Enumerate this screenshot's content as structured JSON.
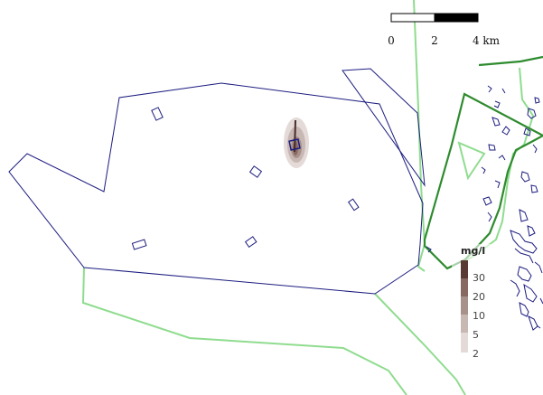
{
  "colors": {
    "navy_outline": "#1c1c80",
    "light_green": "#8fdc8f",
    "dark_green": "#2e8b2e",
    "scalebar_dark": "#000000",
    "scalebar_light": "#ffffff",
    "plume_core": "#4a2a2a"
  },
  "scale_bar": {
    "labels": [
      "0",
      "2",
      "4 km"
    ]
  },
  "legend": {
    "title": "mg/l",
    "levels": [
      {
        "label": "30",
        "color": "#5a3a34"
      },
      {
        "label": "20",
        "color": "#876962"
      },
      {
        "label": "10",
        "color": "#a8918b"
      },
      {
        "label": "5",
        "color": "#c8b8b4"
      },
      {
        "label": "2",
        "color": "#e4dad8"
      }
    ]
  }
}
